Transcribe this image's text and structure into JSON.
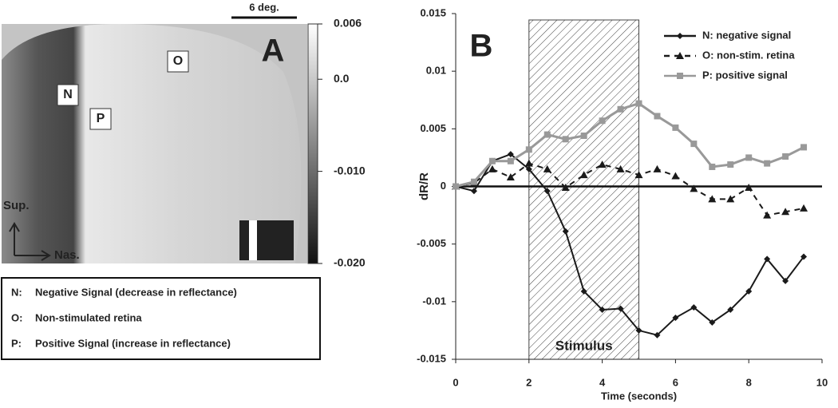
{
  "panel_a": {
    "label": "A",
    "scale_bar": "6 deg.",
    "points": [
      "N",
      "O",
      "P"
    ],
    "directions": [
      "Sup.",
      "Nas."
    ],
    "colorbar": {
      "clim": [
        -0.02,
        0.006
      ],
      "ticks": [
        0.006,
        {
          "value": 0,
          "label": "0.0"
        },
        {
          "value": -0.01,
          "label": "-0.010"
        },
        {
          "value": -0.02,
          "label": "-0.020"
        }
      ]
    },
    "key": [
      [
        "N:",
        "Negative Signal (decrease in reflectance)"
      ],
      [
        "O:",
        "Non-stimulated retina"
      ],
      [
        "P:",
        "Positive Signal  (increase in reflectance)"
      ]
    ]
  },
  "chart_data": {
    "type": "line",
    "title": "B",
    "xlabel": "Time (seconds)",
    "ylabel": "dR/R",
    "annotation": "Stimulus",
    "stimulus_span": [
      2,
      5
    ],
    "x": [
      0,
      0.5,
      1,
      1.5,
      2,
      2.5,
      3,
      3.5,
      4,
      4.5,
      5,
      5.5,
      6,
      6.5,
      7,
      7.5,
      8,
      8.5,
      9,
      9.5
    ],
    "series": [
      {
        "name": "N: negative signal",
        "color": "#1a1a1a",
        "marker": "diamond",
        "line_style": "solid",
        "values": [
          0,
          -0.0004,
          0.0022,
          0.0028,
          0.0015,
          -0.0004,
          -0.0039,
          -0.0091,
          -0.0107,
          -0.0106,
          -0.0125,
          -0.0129,
          -0.0114,
          -0.0105,
          -0.0118,
          -0.0107,
          -0.0091,
          -0.0063,
          -0.0082,
          -0.0061
        ]
      },
      {
        "name": "O: non-stim. retina",
        "color": "#1a1a1a",
        "marker": "triangle",
        "line_style": "dashed",
        "values": [
          0,
          0.0003,
          0.0015,
          0.0008,
          0.002,
          0.0015,
          -0.0001,
          0.001,
          0.0019,
          0.0015,
          0.001,
          0.0015,
          0.0009,
          -0.0002,
          -0.0011,
          -0.0011,
          -0.0001,
          -0.0025,
          -0.0022,
          -0.0019
        ]
      },
      {
        "name": "P: positive signal",
        "color": "#999999",
        "marker": "square",
        "line_style": "solid",
        "values": [
          0,
          0.0004,
          0.0022,
          0.0022,
          0.0032,
          0.0045,
          0.0041,
          0.0044,
          0.0057,
          0.0067,
          0.0072,
          0.0061,
          0.0051,
          0.0037,
          0.0017,
          0.0019,
          0.0025,
          0.002,
          0.0026,
          0.0034
        ]
      }
    ],
    "xlim": [
      0,
      10
    ],
    "xticks": [
      0,
      2,
      4,
      6,
      8,
      10
    ],
    "ylim": [
      -0.015,
      0.015
    ],
    "yticks": [
      0.015,
      0.01,
      0.005,
      0,
      -0.005,
      -0.01,
      -0.015
    ],
    "legend": "upper right"
  }
}
